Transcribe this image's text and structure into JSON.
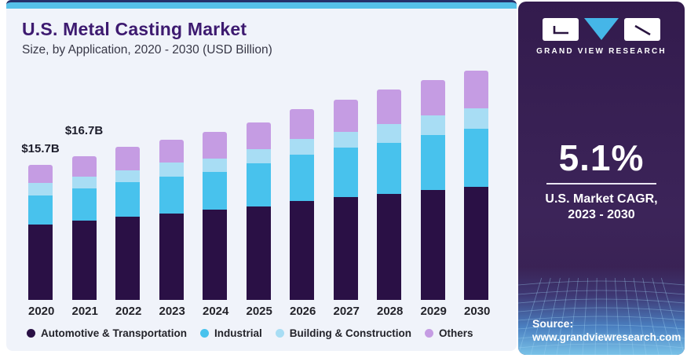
{
  "header": {
    "title": "U.S. Metal Casting Market",
    "subtitle": "Size, by Application, 2020 - 2030 (USD Billion)"
  },
  "chart_data": {
    "type": "bar",
    "stacked": true,
    "title": "U.S. Metal Casting Market",
    "subtitle": "Size, by Application, 2020 - 2030 (USD Billion)",
    "unit": "USD Billion",
    "categories": [
      "2020",
      "2021",
      "2022",
      "2023",
      "2024",
      "2025",
      "2026",
      "2027",
      "2028",
      "2029",
      "2030"
    ],
    "series": [
      {
        "name": "Automotive & Transportation",
        "color": "#2a1045",
        "values": [
          8.8,
          9.2,
          9.7,
          10.1,
          10.5,
          10.9,
          11.5,
          12.0,
          12.3,
          12.8,
          13.2
        ]
      },
      {
        "name": "Industrial",
        "color": "#48c2ed",
        "values": [
          3.4,
          3.8,
          4.0,
          4.3,
          4.4,
          5.0,
          5.4,
          5.7,
          6.0,
          6.4,
          6.7
        ]
      },
      {
        "name": "Building & Construction",
        "color": "#a8ddf4",
        "values": [
          1.4,
          1.4,
          1.4,
          1.6,
          1.6,
          1.7,
          1.8,
          1.9,
          2.2,
          2.3,
          2.4
        ]
      },
      {
        "name": "Others",
        "color": "#c59ce3",
        "values": [
          2.1,
          2.3,
          2.7,
          2.7,
          3.1,
          3.1,
          3.5,
          3.7,
          4.0,
          4.1,
          4.4
        ]
      }
    ],
    "totals": [
      15.7,
      16.7,
      17.8,
      18.7,
      19.6,
      20.7,
      22.2,
      23.3,
      24.5,
      25.6,
      26.7
    ],
    "annotations": [
      {
        "category": "2020",
        "label": "$15.7B"
      },
      {
        "category": "2021",
        "label": "$16.7B"
      }
    ],
    "ylim": [
      0,
      28
    ],
    "grid": false,
    "axis_lines": false,
    "legend_position": "bottom"
  },
  "sidebar": {
    "brand": "GRAND VIEW RESEARCH",
    "cagr_value": "5.1%",
    "cagr_label_line1": "U.S. Market CAGR,",
    "cagr_label_line2": "2023 - 2030",
    "source_label": "Source:",
    "source_url": "www.grandviewresearch.com"
  },
  "colors": {
    "title_text": "#3d1a70",
    "card_background": "#f0f3fa",
    "top_strip": "#56c0e8",
    "panel_background": "#3c2459",
    "logo_triangle": "#45b6e8",
    "source_gradient_bottom": "#79c2e8"
  }
}
